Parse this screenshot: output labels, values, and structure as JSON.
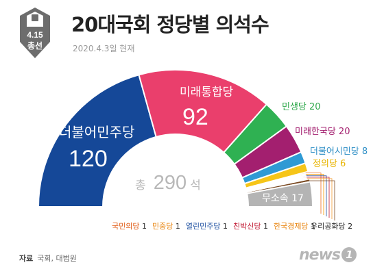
{
  "header": {
    "title": "20대국회 정당별 의석수",
    "date": "2020.4.3일 현재",
    "badge_line1": "4.15",
    "badge_line2": "총선"
  },
  "chart_data": {
    "type": "pie",
    "subtype": "parliament-semicircle",
    "total_prefix": "총",
    "total_value": "290",
    "total_suffix": "석",
    "total": 290,
    "series": [
      {
        "name": "더불어민주당",
        "value": 120,
        "color": "#154898"
      },
      {
        "name": "미래통합당",
        "value": 92,
        "color": "#ea3f6c"
      },
      {
        "name": "민생당",
        "value": 20,
        "color": "#2fb152"
      },
      {
        "name": "미래한국당",
        "value": 20,
        "color": "#a31f6f"
      },
      {
        "name": "더불어시민당",
        "value": 8,
        "color": "#2f9ad4"
      },
      {
        "name": "정의당",
        "value": 6,
        "color": "#f6c518"
      },
      {
        "name": "국민의당",
        "value": 1,
        "color": "#ea6a1e"
      },
      {
        "name": "민중당",
        "value": 1,
        "color": "#f39800"
      },
      {
        "name": "열린민주당",
        "value": 1,
        "color": "#1d4fa0"
      },
      {
        "name": "친박신당",
        "value": 1,
        "color": "#c0152f"
      },
      {
        "name": "한국경제당",
        "value": 1,
        "color": "#f29a2e"
      },
      {
        "name": "우리공화당",
        "value": 2,
        "color": "#7a4a23"
      },
      {
        "name": "무소속",
        "value": 17,
        "color": "#b4b4b4"
      }
    ],
    "labels": {
      "더불어민주당": "더불어민주당",
      "더불어민주당_value": "120",
      "미래통합당": "미래통합당",
      "미래통합당_value": "92",
      "민생당": "민생당 20",
      "미래한국당": "미래한국당 20",
      "더불어시민당": "더불어시민당 8",
      "정의당": "정의당 6",
      "무소속": "무소속 17",
      "우리공화당": "우리공화당 2"
    },
    "small_parties_legend": [
      {
        "name": "국민의당",
        "value": "1",
        "color": "#e05a14"
      },
      {
        "name": "민중당",
        "value": "1",
        "color": "#e8820a"
      },
      {
        "name": "열린민주당",
        "value": "1",
        "color": "#1d4fa0"
      },
      {
        "name": "친박신당",
        "value": "1",
        "color": "#c0152f"
      },
      {
        "name": "한국경제당",
        "value": "1",
        "color": "#e8820a"
      }
    ]
  },
  "footer": {
    "source_label": "자료",
    "source_text": "국회, 대법원",
    "logo_text": "news",
    "logo_mark": "1"
  }
}
